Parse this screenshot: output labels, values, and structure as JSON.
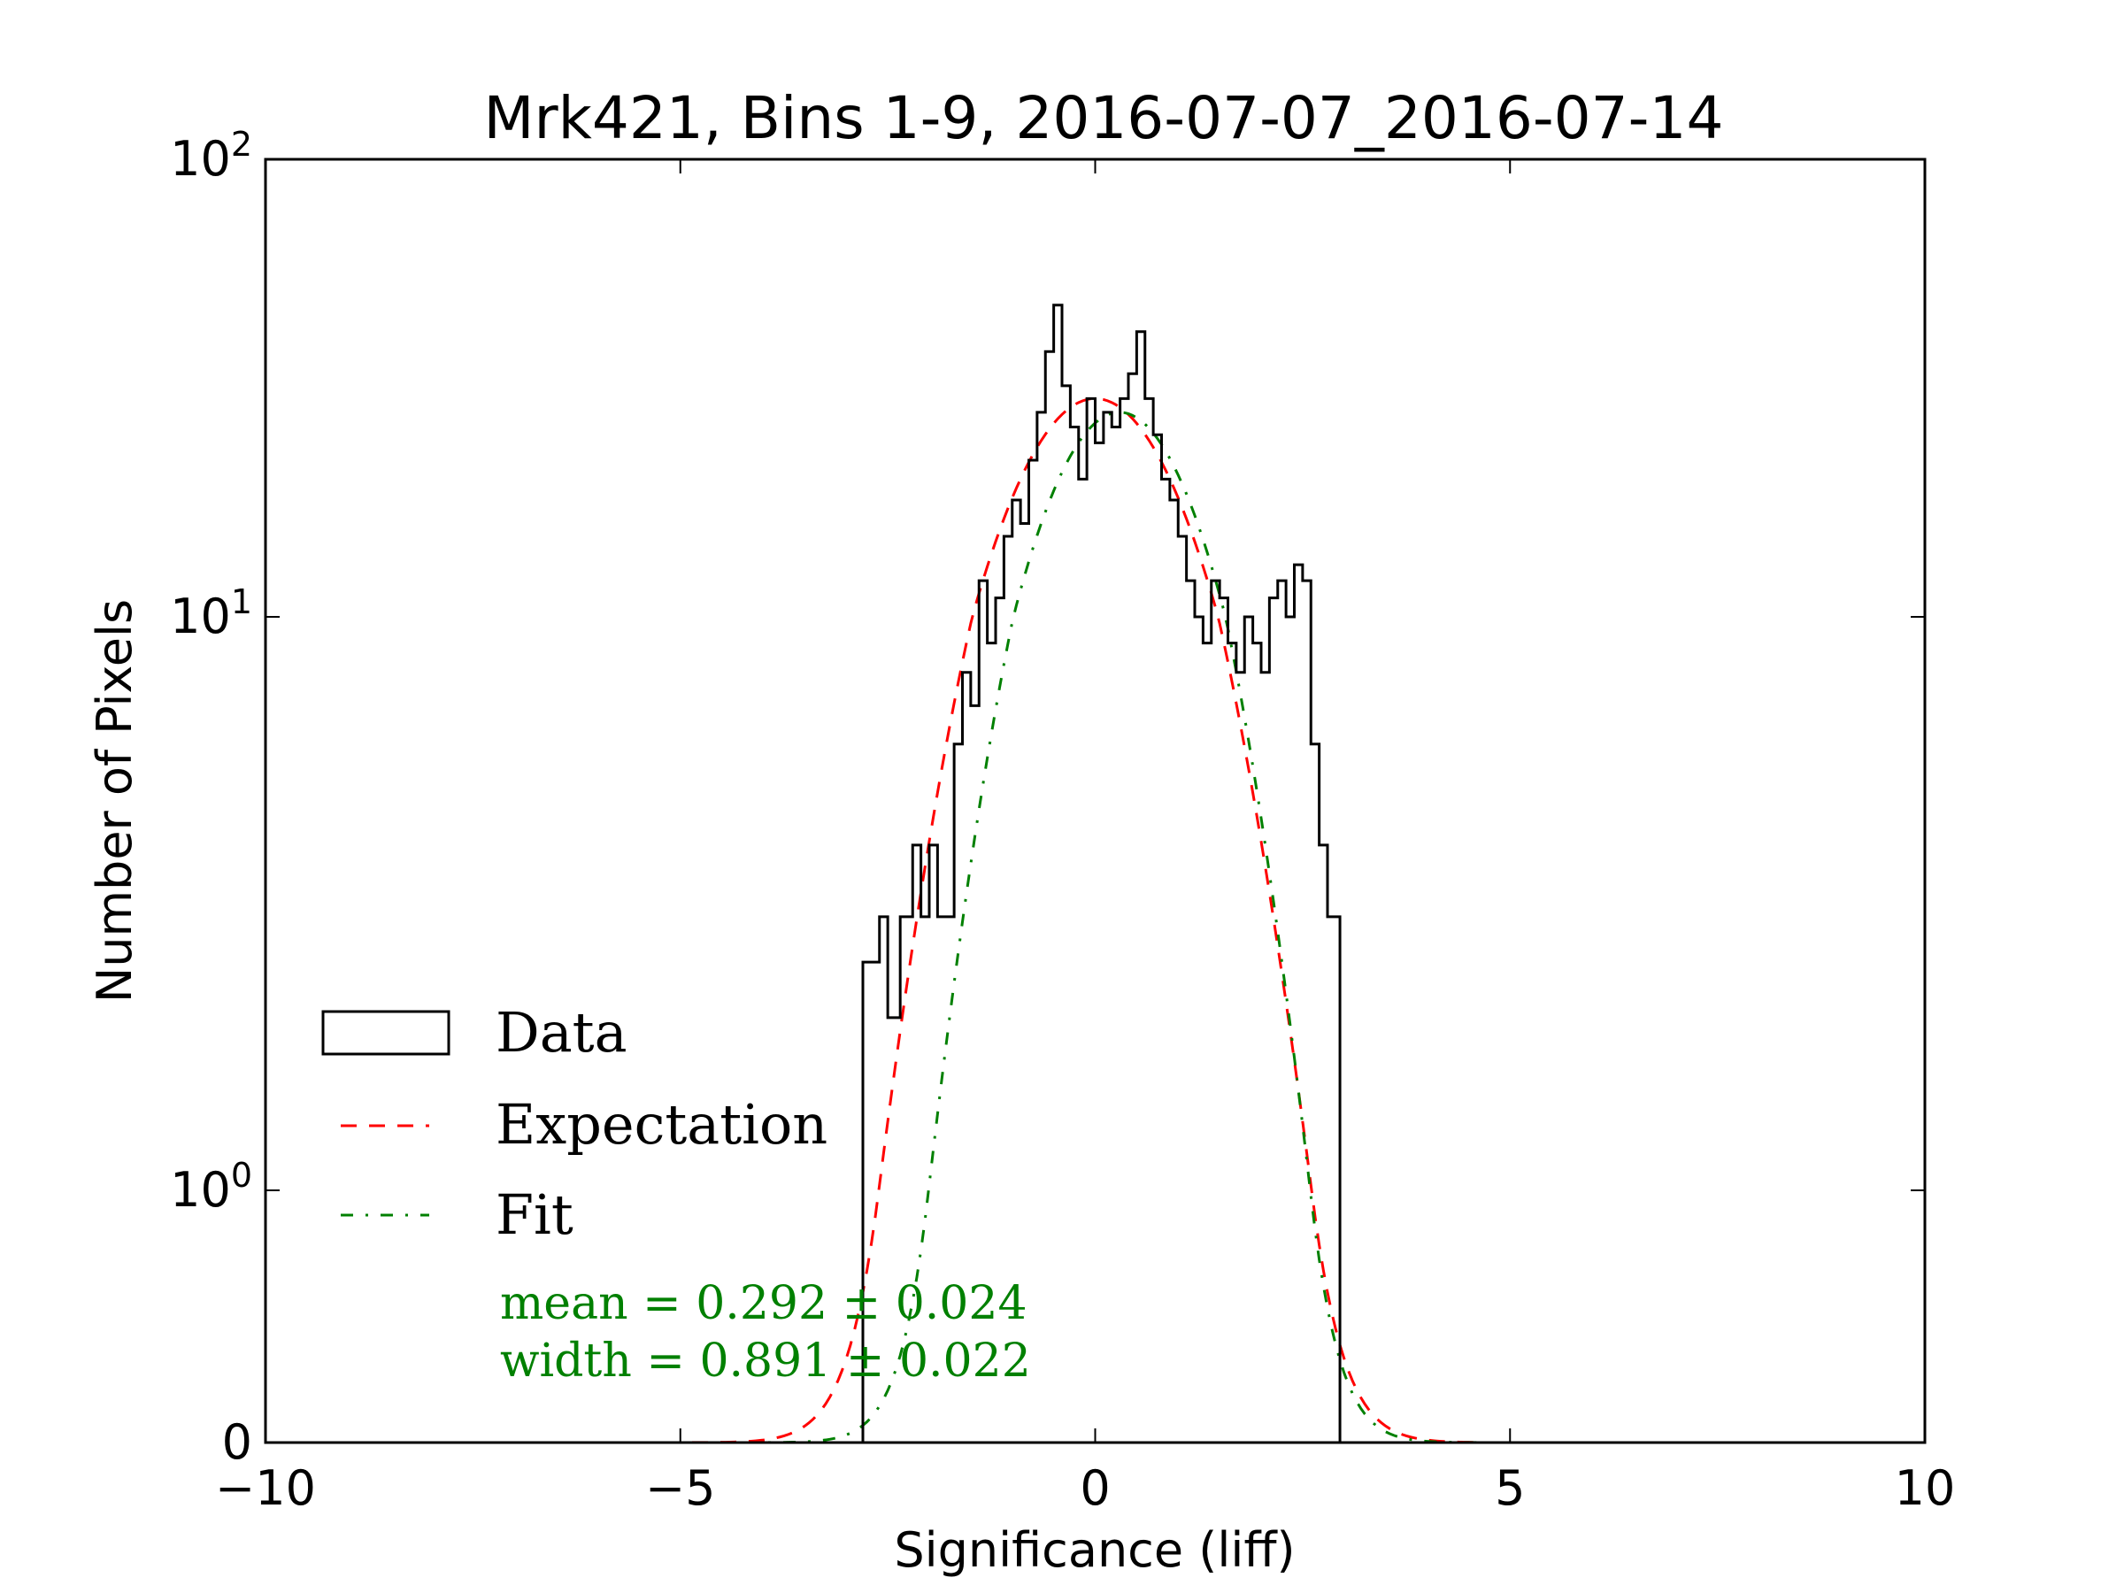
{
  "chart_data": {
    "type": "histogram",
    "title": "Mrk421, Bins 1-9, 2016-07-07_2016-07-14",
    "xlabel": "Significance (liff)",
    "ylabel": "Number of Pixels",
    "xlim": [
      -10,
      10
    ],
    "y_scale": "symlog (linear below 1, log above)",
    "ylim": [
      0,
      100
    ],
    "x_ticks": [
      {
        "value": -10,
        "label": "−10"
      },
      {
        "value": -5,
        "label": "−5"
      },
      {
        "value": 0,
        "label": "0"
      },
      {
        "value": 5,
        "label": "5"
      },
      {
        "value": 10,
        "label": "10"
      }
    ],
    "y_ticks": [
      {
        "value": 0,
        "base": "0",
        "exp": ""
      },
      {
        "value": 1,
        "base": "10",
        "exp": "0"
      },
      {
        "value": 10,
        "base": "10",
        "exp": "1"
      },
      {
        "value": 100,
        "base": "10",
        "exp": "2"
      }
    ],
    "legend": {
      "placement": "lower-left",
      "entries": [
        {
          "label": "Data",
          "style": "box",
          "color": "#000000"
        },
        {
          "label": "Expectation",
          "style": "dashed",
          "color": "#ff0000"
        },
        {
          "label": "Fit",
          "style": "dashdot",
          "color": "#008000"
        }
      ]
    },
    "annotations": {
      "mean": "mean = 0.292 ± 0.024",
      "width": "width = 0.891 ± 0.022",
      "color": "#008000"
    },
    "series": [
      {
        "name": "Data",
        "kind": "step",
        "color": "#000000",
        "x": [
          -2.8,
          -2.6,
          -2.5,
          -2.35,
          -2.2,
          -2.1,
          -2.0,
          -1.9,
          -1.8,
          -1.7,
          -1.6,
          -1.5,
          -1.4,
          -1.3,
          -1.2,
          -1.1,
          -1.0,
          -0.9,
          -0.8,
          -0.7,
          -0.6,
          -0.5,
          -0.4,
          -0.3,
          -0.2,
          -0.1,
          0.0,
          0.1,
          0.2,
          0.3,
          0.4,
          0.5,
          0.6,
          0.7,
          0.8,
          0.9,
          1.0,
          1.1,
          1.2,
          1.3,
          1.4,
          1.5,
          1.6,
          1.7,
          1.8,
          1.9,
          2.0,
          2.1,
          2.2,
          2.3,
          2.4,
          2.5,
          2.6,
          2.7,
          2.8,
          2.95
        ],
        "y": [
          2.5,
          3,
          2,
          3,
          4,
          3,
          4,
          3,
          3,
          6,
          8,
          7,
          12,
          9,
          11,
          15,
          18,
          16,
          22,
          28,
          38,
          48,
          32,
          26,
          20,
          30,
          24,
          28,
          26,
          30,
          34,
          42,
          30,
          25,
          20,
          18,
          15,
          12,
          10,
          9,
          12,
          11,
          9,
          8,
          10,
          9,
          8,
          11,
          12,
          10,
          13,
          12,
          6,
          4,
          3,
          0
        ]
      },
      {
        "name": "Expectation",
        "kind": "gaussian",
        "color": "#ff0000",
        "mean": 0,
        "width": 1,
        "amplitude": 30
      },
      {
        "name": "Fit",
        "kind": "gaussian",
        "color": "#008000",
        "mean": 0.292,
        "width": 0.891,
        "amplitude": 28
      }
    ]
  }
}
